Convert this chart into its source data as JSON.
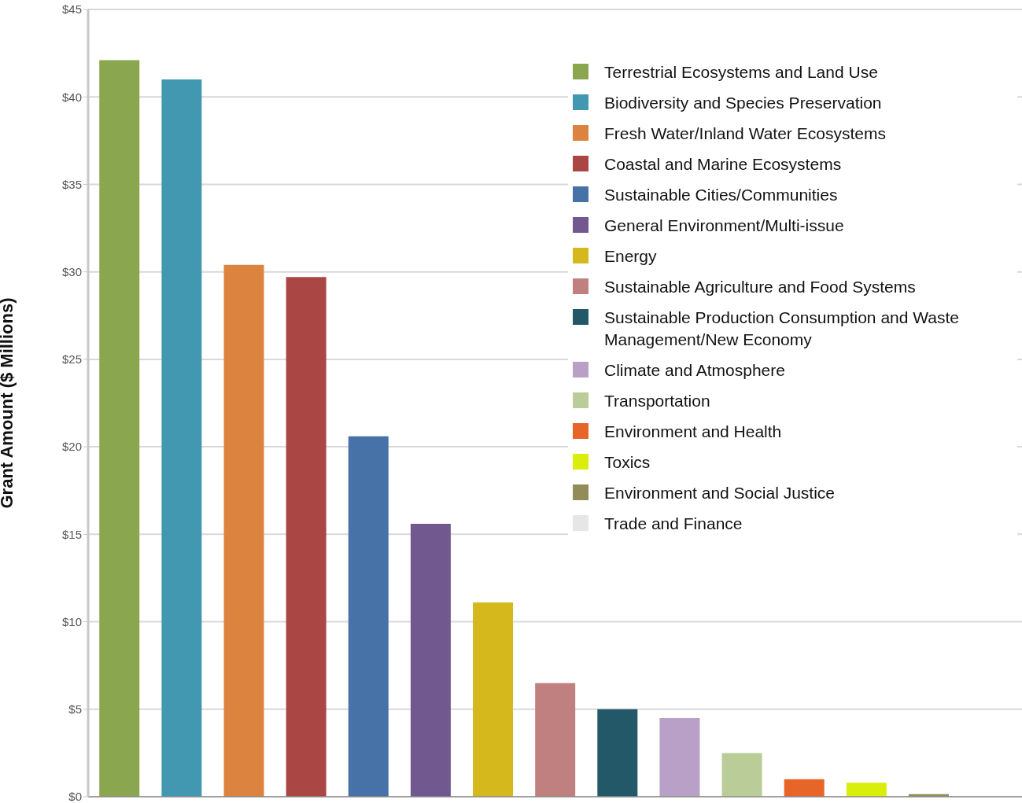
{
  "chart_data": {
    "type": "bar",
    "ylabel": "Grant Amount ($ Millions)",
    "stacked": true,
    "categories": [
      null,
      null,
      null,
      null,
      null,
      null,
      null,
      null,
      null,
      null,
      null,
      null,
      null,
      null,
      null
    ],
    "series": [
      {
        "name": "Terrestrial Ecosystems and Land Use",
        "color": "#8aa64f",
        "values": [
          42.1,
          null,
          null,
          null,
          null,
          null,
          null,
          null,
          null,
          null,
          null,
          null,
          null,
          null,
          null
        ]
      },
      {
        "name": "Biodiversity and Species Preservation",
        "color": "#4298b0",
        "values": [
          null,
          41.0,
          null,
          null,
          null,
          null,
          null,
          null,
          null,
          null,
          null,
          null,
          null,
          null,
          null
        ]
      },
      {
        "name": "Fresh Water/Inland Water Ecosystems",
        "color": "#dc843f",
        "values": [
          null,
          null,
          30.4,
          null,
          null,
          null,
          null,
          null,
          null,
          null,
          null,
          null,
          null,
          null,
          null
        ]
      },
      {
        "name": "Coastal and Marine Ecosystems",
        "color": "#aa4644",
        "values": [
          null,
          null,
          null,
          29.7,
          null,
          null,
          null,
          null,
          null,
          null,
          null,
          null,
          null,
          null,
          null
        ]
      },
      {
        "name": "Sustainable Cities/Communities",
        "color": "#4672a7",
        "values": [
          null,
          null,
          null,
          null,
          20.6,
          null,
          null,
          null,
          null,
          null,
          null,
          null,
          null,
          null,
          null
        ]
      },
      {
        "name": "General Environment/Multi-issue",
        "color": "#71588f",
        "values": [
          null,
          null,
          null,
          null,
          null,
          15.6,
          null,
          null,
          null,
          null,
          null,
          null,
          null,
          null,
          null
        ]
      },
      {
        "name": "Energy",
        "color": "#d4b81c",
        "values": [
          null,
          null,
          null,
          null,
          null,
          null,
          11.1,
          null,
          null,
          null,
          null,
          null,
          null,
          null,
          null
        ]
      },
      {
        "name": "Sustainable Agriculture and Food Systems",
        "color": "#c0807f",
        "values": [
          null,
          null,
          null,
          null,
          null,
          null,
          null,
          6.5,
          null,
          null,
          null,
          null,
          null,
          null,
          null
        ]
      },
      {
        "name": "Sustainable Production Consumption and Waste Management/New Economy",
        "color": "#235868",
        "values": [
          null,
          null,
          null,
          null,
          null,
          null,
          null,
          null,
          5.0,
          null,
          null,
          null,
          null,
          null,
          null
        ]
      },
      {
        "name": "Climate and Atmosphere",
        "color": "#b8a0c6",
        "values": [
          null,
          null,
          null,
          null,
          null,
          null,
          null,
          null,
          null,
          4.5,
          null,
          null,
          null,
          null,
          null
        ]
      },
      {
        "name": "Transportation",
        "color": "#bacd98",
        "values": [
          null,
          null,
          null,
          null,
          null,
          null,
          null,
          null,
          null,
          null,
          2.5,
          null,
          null,
          null,
          null
        ]
      },
      {
        "name": "Environment and Health",
        "color": "#e8652a",
        "values": [
          null,
          null,
          null,
          null,
          null,
          null,
          null,
          null,
          null,
          null,
          null,
          1.0,
          null,
          null,
          null
        ]
      },
      {
        "name": "Toxics",
        "color": "#d9ee0a",
        "values": [
          null,
          null,
          null,
          null,
          null,
          null,
          null,
          null,
          null,
          null,
          null,
          null,
          0.8,
          null,
          null
        ]
      },
      {
        "name": "Environment and Social Justice",
        "color": "#918c58",
        "values": [
          null,
          null,
          null,
          null,
          null,
          null,
          null,
          null,
          null,
          null,
          null,
          null,
          null,
          0.15,
          null
        ]
      },
      {
        "name": "Trade and Finance",
        "color": "#e6e6e6",
        "values": [
          null,
          null,
          null,
          null,
          null,
          null,
          null,
          null,
          null,
          null,
          null,
          null,
          null,
          null,
          0
        ]
      }
    ],
    "ylim": [
      0,
      45
    ],
    "yticks": [
      {
        "value": 0,
        "label": "$0"
      },
      {
        "value": 5,
        "label": "$5"
      },
      {
        "value": 10,
        "label": "$10"
      },
      {
        "value": 15,
        "label": "$15"
      },
      {
        "value": 20,
        "label": "$20"
      },
      {
        "value": 25,
        "label": "$25"
      },
      {
        "value": 30,
        "label": "$30"
      },
      {
        "value": 35,
        "label": "$35"
      },
      {
        "value": 40,
        "label": "$40"
      },
      {
        "value": 45,
        "label": "$45"
      }
    ],
    "grid": "y",
    "legend": "top right",
    "tick_labels": "y"
  }
}
